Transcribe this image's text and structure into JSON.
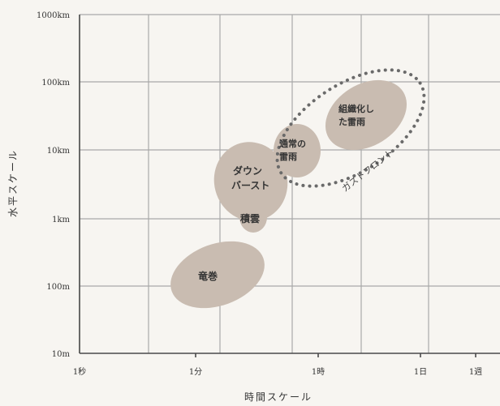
{
  "chart_data": {
    "type": "scatter",
    "xlabel": "時間スケール",
    "ylabel": "水平スケール",
    "x_ticks": [
      "1秒",
      "1分",
      "1時",
      "1日",
      "1週"
    ],
    "y_ticks": [
      "1000km",
      "100km",
      "10km",
      "1km",
      "100m",
      "10m"
    ],
    "log_scale": true,
    "grid": true,
    "phenomena": [
      {
        "label_lines": [
          "組織化し",
          "た雷雨"
        ]
      },
      {
        "label_lines": [
          "通常の",
          "雷雨"
        ]
      },
      {
        "label_lines": [
          "ダウン",
          "バースト"
        ]
      },
      {
        "label_lines": [
          "積雲"
        ]
      },
      {
        "label_lines": [
          "竜巻"
        ]
      }
    ],
    "gust_front_label": "ガストフロント"
  },
  "colors": {
    "background": "#f7f5f1",
    "blob": "#c9bcb1",
    "grid": "#aaaaaa",
    "axis": "#4a4a4a",
    "text": "#333333",
    "dots": "#6a6a6a"
  }
}
